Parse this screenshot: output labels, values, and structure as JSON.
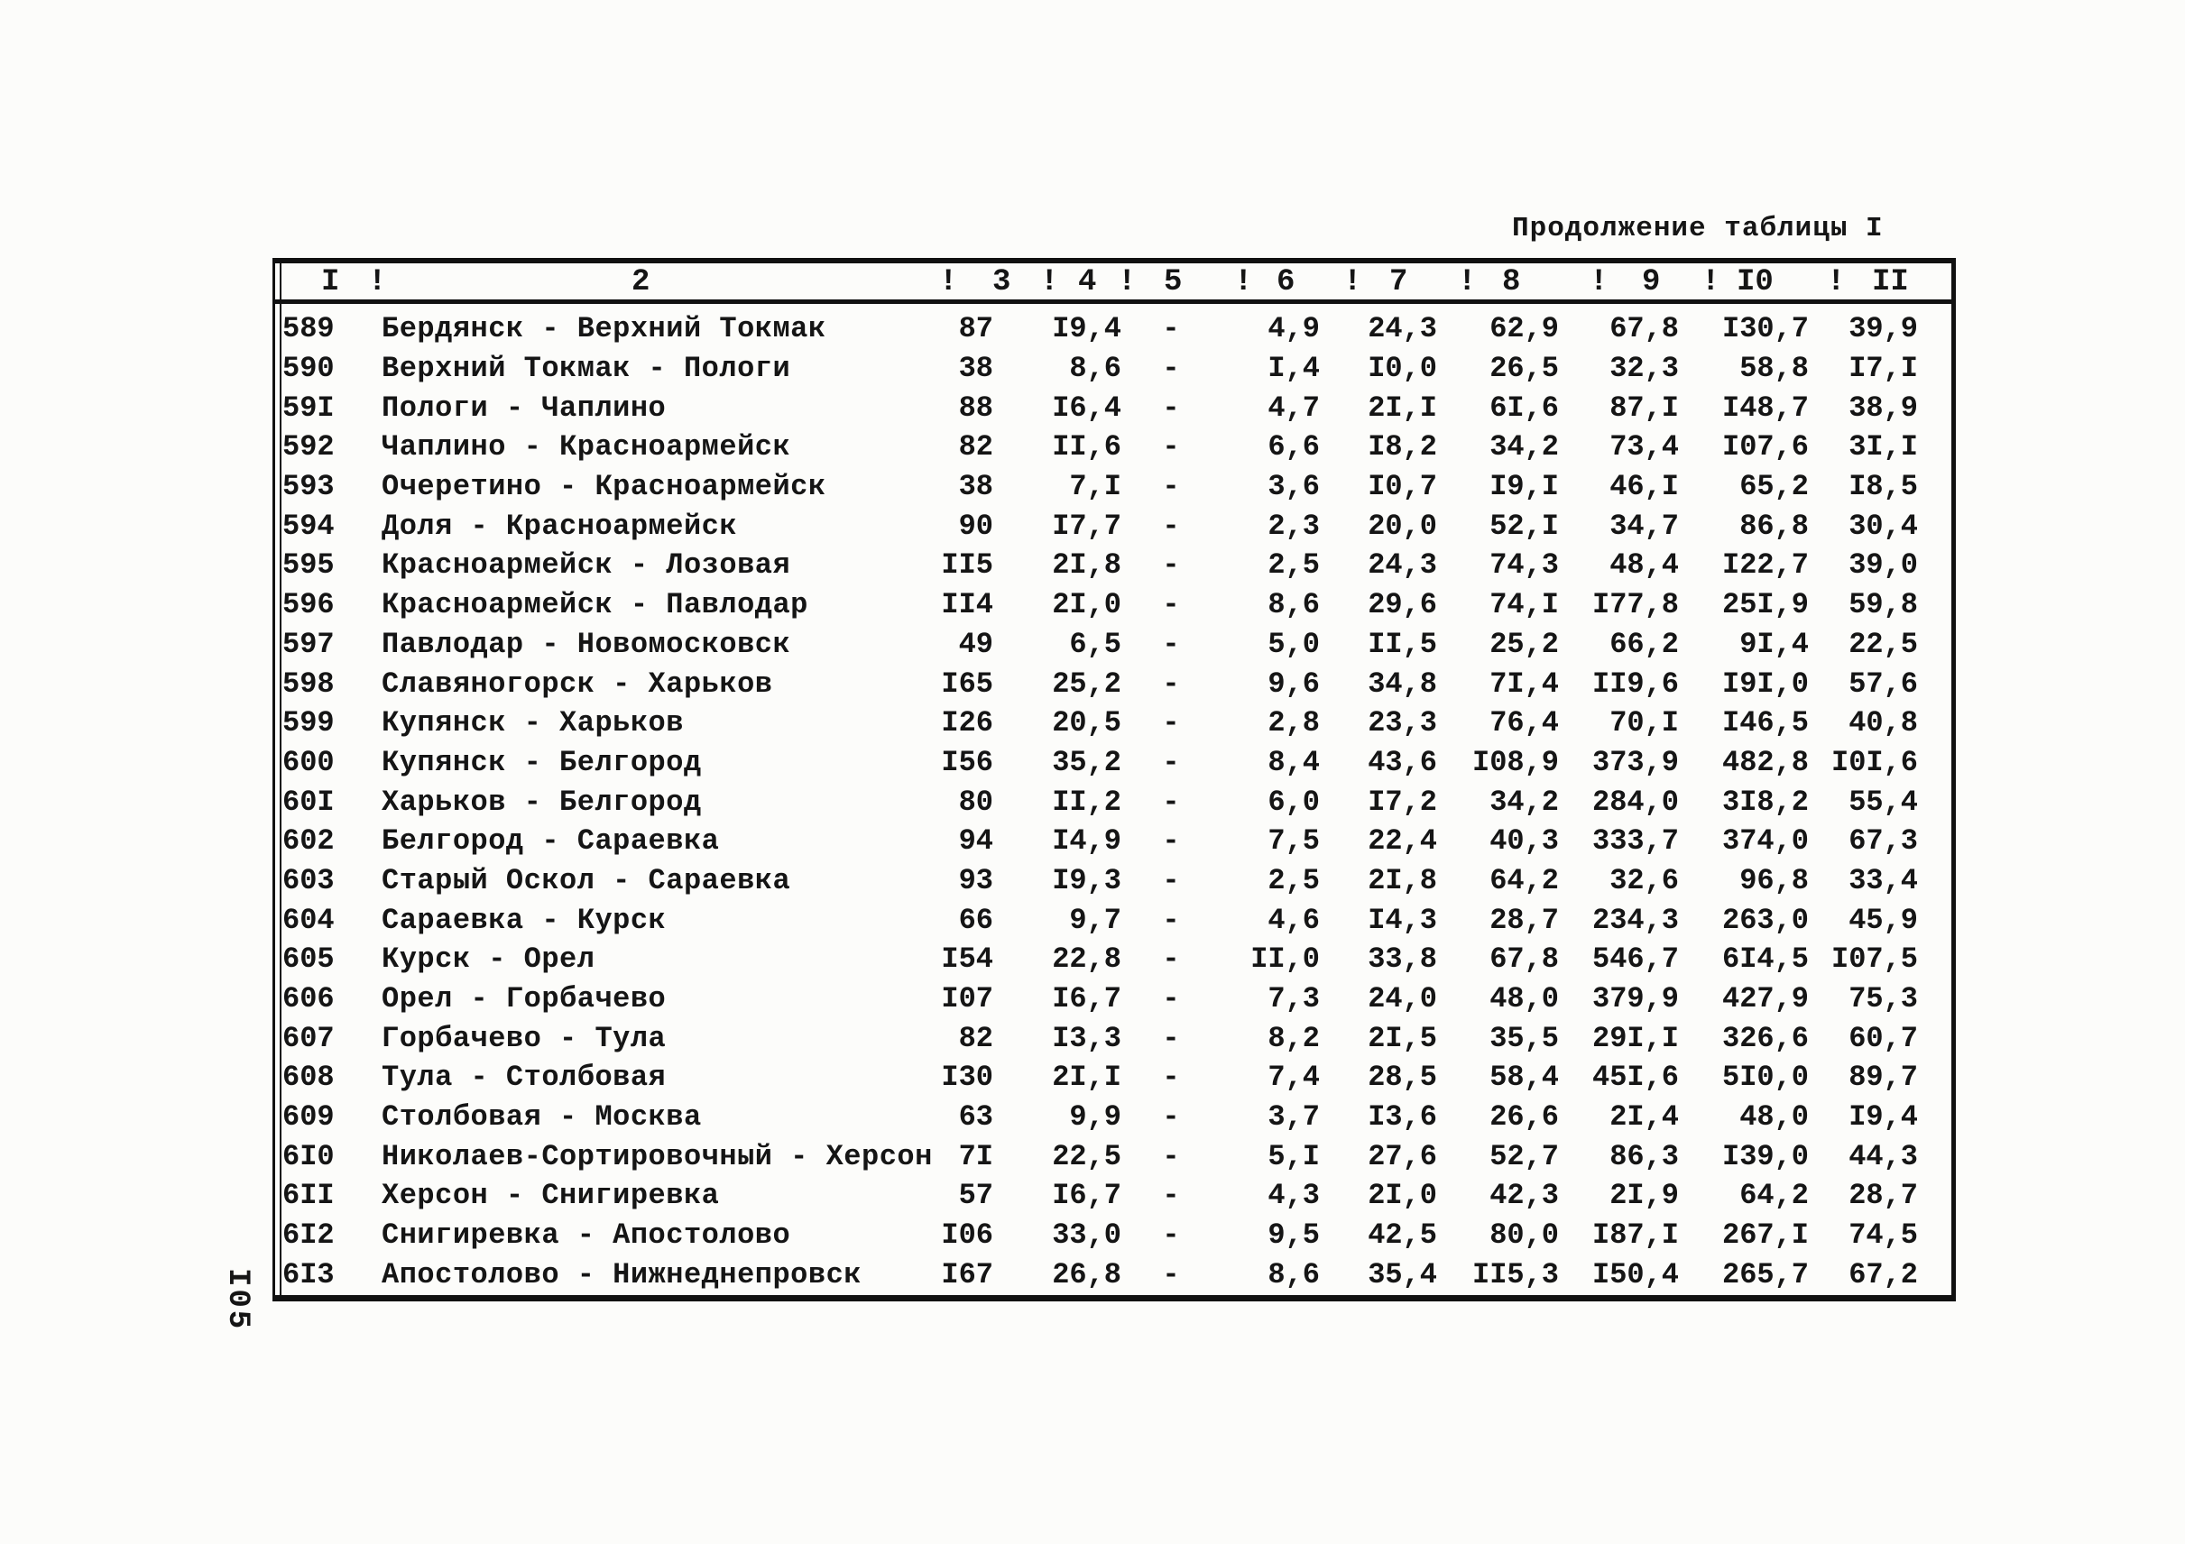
{
  "page": {
    "title": "Продолжение таблицы I",
    "page_number": "I05"
  },
  "table": {
    "header": {
      "separator": "!",
      "columns": [
        "I",
        "2",
        "3",
        "4",
        "5",
        "6",
        "7",
        "8",
        "9",
        "I0",
        "II"
      ]
    },
    "rows": [
      {
        "id": "589",
        "name": "Бердянск - Верхний Токмак",
        "c3": "87",
        "c4": "I9,4",
        "c5": "-",
        "c6": "4,9",
        "c7": "24,3",
        "c8": "62,9",
        "c9": "67,8",
        "c10": "I30,7",
        "c11": "39,9"
      },
      {
        "id": "590",
        "name": "Верхний Токмак - Пологи",
        "c3": "38",
        "c4": "8,6",
        "c5": "-",
        "c6": "I,4",
        "c7": "I0,0",
        "c8": "26,5",
        "c9": "32,3",
        "c10": "58,8",
        "c11": "I7,I"
      },
      {
        "id": "59I",
        "name": "Пологи - Чаплино",
        "c3": "88",
        "c4": "I6,4",
        "c5": "-",
        "c6": "4,7",
        "c7": "2I,I",
        "c8": "6I,6",
        "c9": "87,I",
        "c10": "I48,7",
        "c11": "38,9"
      },
      {
        "id": "592",
        "name": "Чаплино - Красноармейск",
        "c3": "82",
        "c4": "II,6",
        "c5": "-",
        "c6": "6,6",
        "c7": "I8,2",
        "c8": "34,2",
        "c9": "73,4",
        "c10": "I07,6",
        "c11": "3I,I"
      },
      {
        "id": "593",
        "name": "Очеретино - Красноармейск",
        "c3": "38",
        "c4": "7,I",
        "c5": "-",
        "c6": "3,6",
        "c7": "I0,7",
        "c8": "I9,I",
        "c9": "46,I",
        "c10": "65,2",
        "c11": "I8,5"
      },
      {
        "id": "594",
        "name": "Доля - Красноармейск",
        "c3": "90",
        "c4": "I7,7",
        "c5": "-",
        "c6": "2,3",
        "c7": "20,0",
        "c8": "52,I",
        "c9": "34,7",
        "c10": "86,8",
        "c11": "30,4"
      },
      {
        "id": "595",
        "name": "Красноармейск - Лозовая",
        "c3": "II5",
        "c4": "2I,8",
        "c5": "-",
        "c6": "2,5",
        "c7": "24,3",
        "c8": "74,3",
        "c9": "48,4",
        "c10": "I22,7",
        "c11": "39,0"
      },
      {
        "id": "596",
        "name": "Красноармейск - Павлодар",
        "c3": "II4",
        "c4": "2I,0",
        "c5": "-",
        "c6": "8,6",
        "c7": "29,6",
        "c8": "74,I",
        "c9": "I77,8",
        "c10": "25I,9",
        "c11": "59,8"
      },
      {
        "id": "597",
        "name": "Павлодар - Новомосковск",
        "c3": "49",
        "c4": "6,5",
        "c5": "-",
        "c6": "5,0",
        "c7": "II,5",
        "c8": "25,2",
        "c9": "66,2",
        "c10": "9I,4",
        "c11": "22,5"
      },
      {
        "id": "598",
        "name": "Славяногорск - Харьков",
        "c3": "I65",
        "c4": "25,2",
        "c5": "-",
        "c6": "9,6",
        "c7": "34,8",
        "c8": "7I,4",
        "c9": "II9,6",
        "c10": "I9I,0",
        "c11": "57,6"
      },
      {
        "id": "599",
        "name": "Купянск - Харьков",
        "c3": "I26",
        "c4": "20,5",
        "c5": "-",
        "c6": "2,8",
        "c7": "23,3",
        "c8": "76,4",
        "c9": "70,I",
        "c10": "I46,5",
        "c11": "40,8"
      },
      {
        "id": "600",
        "name": "Купянск - Белгород",
        "c3": "I56",
        "c4": "35,2",
        "c5": "-",
        "c6": "8,4",
        "c7": "43,6",
        "c8": "I08,9",
        "c9": "373,9",
        "c10": "482,8",
        "c11": "I0I,6"
      },
      {
        "id": "60I",
        "name": "Харьков - Белгород",
        "c3": "80",
        "c4": "II,2",
        "c5": "-",
        "c6": "6,0",
        "c7": "I7,2",
        "c8": "34,2",
        "c9": "284,0",
        "c10": "3I8,2",
        "c11": "55,4"
      },
      {
        "id": "602",
        "name": "Белгород - Сараевка",
        "c3": "94",
        "c4": "I4,9",
        "c5": "-",
        "c6": "7,5",
        "c7": "22,4",
        "c8": "40,3",
        "c9": "333,7",
        "c10": "374,0",
        "c11": "67,3"
      },
      {
        "id": "603",
        "name": "Старый Оскол - Сараевка",
        "c3": "93",
        "c4": "I9,3",
        "c5": "-",
        "c6": "2,5",
        "c7": "2I,8",
        "c8": "64,2",
        "c9": "32,6",
        "c10": "96,8",
        "c11": "33,4"
      },
      {
        "id": "604",
        "name": "Сараевка - Курск",
        "c3": "66",
        "c4": "9,7",
        "c5": "-",
        "c6": "4,6",
        "c7": "I4,3",
        "c8": "28,7",
        "c9": "234,3",
        "c10": "263,0",
        "c11": "45,9"
      },
      {
        "id": "605",
        "name": "Курск - Орел",
        "c3": "I54",
        "c4": "22,8",
        "c5": "-",
        "c6": "II,0",
        "c7": "33,8",
        "c8": "67,8",
        "c9": "546,7",
        "c10": "6I4,5",
        "c11": "I07,5"
      },
      {
        "id": "606",
        "name": "Орел - Горбачево",
        "c3": "I07",
        "c4": "I6,7",
        "c5": "-",
        "c6": "7,3",
        "c7": "24,0",
        "c8": "48,0",
        "c9": "379,9",
        "c10": "427,9",
        "c11": "75,3"
      },
      {
        "id": "607",
        "name": "Горбачево - Тула",
        "c3": "82",
        "c4": "I3,3",
        "c5": "-",
        "c6": "8,2",
        "c7": "2I,5",
        "c8": "35,5",
        "c9": "29I,I",
        "c10": "326,6",
        "c11": "60,7"
      },
      {
        "id": "608",
        "name": "Тула - Столбовая",
        "c3": "I30",
        "c4": "2I,I",
        "c5": "-",
        "c6": "7,4",
        "c7": "28,5",
        "c8": "58,4",
        "c9": "45I,6",
        "c10": "5I0,0",
        "c11": "89,7"
      },
      {
        "id": "609",
        "name": "Столбовая - Москва",
        "c3": "63",
        "c4": "9,9",
        "c5": "-",
        "c6": "3,7",
        "c7": "I3,6",
        "c8": "26,6",
        "c9": "2I,4",
        "c10": "48,0",
        "c11": "I9,4"
      },
      {
        "id": "6I0",
        "name": "Николаев-Сортировочный - Херсон",
        "c3": "7I",
        "c4": "22,5",
        "c5": "-",
        "c6": "5,I",
        "c7": "27,6",
        "c8": "52,7",
        "c9": "86,3",
        "c10": "I39,0",
        "c11": "44,3"
      },
      {
        "id": "6II",
        "name": "Херсон - Снигиревка",
        "c3": "57",
        "c4": "I6,7",
        "c5": "-",
        "c6": "4,3",
        "c7": "2I,0",
        "c8": "42,3",
        "c9": "2I,9",
        "c10": "64,2",
        "c11": "28,7"
      },
      {
        "id": "6I2",
        "name": "Снигиревка - Апостолово",
        "c3": "I06",
        "c4": "33,0",
        "c5": "-",
        "c6": "9,5",
        "c7": "42,5",
        "c8": "80,0",
        "c9": "I87,I",
        "c10": "267,I",
        "c11": "74,5"
      },
      {
        "id": "6I3",
        "name": "Апостолово - Нижнеднепровск",
        "c3": "I67",
        "c4": "26,8",
        "c5": "-",
        "c6": "8,6",
        "c7": "35,4",
        "c8": "II5,3",
        "c9": "I50,4",
        "c10": "265,7",
        "c11": "67,2"
      }
    ]
  }
}
